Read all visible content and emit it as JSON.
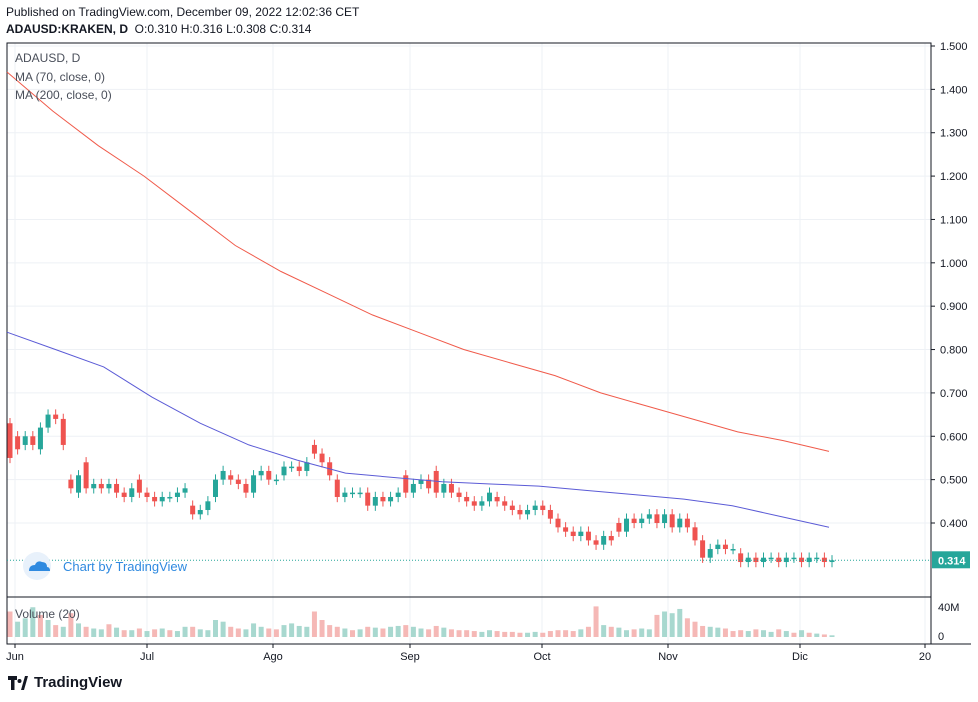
{
  "header": {
    "published": "Published on TradingView.com, December 09, 2022 12:02:36 CET",
    "symbol": "ADAUSD:KRAKEN, D",
    "ohlc": "O:0.310 H:0.316 L:0.308 C:0.314"
  },
  "legend": {
    "symbol": "ADAUSD, D",
    "ma70": "MA (70, close, 0)",
    "ma200": "MA (200, close, 0)",
    "volume": "Volume (20)"
  },
  "watermark": "Chart by TradingView",
  "footer_brand": "TradingView",
  "price_tag": "0.314",
  "colors": {
    "up": "#26a69a",
    "down": "#ef5350",
    "ma70": "#5b5bd6",
    "ma200": "#f05a4a",
    "grid": "#eef1f5",
    "vol_up": "#a8d8cf",
    "vol_down": "#f5b8b6",
    "tag": "#26a69a"
  },
  "chart_data": {
    "type": "candlestick",
    "symbol": "ADAUSD",
    "interval": "D",
    "x_ticks": [
      "Jun",
      "Jul",
      "Ago",
      "Sep",
      "Oct",
      "Nov",
      "Dic",
      "20"
    ],
    "y_ticks": [
      "1.500",
      "1.400",
      "1.300",
      "1.200",
      "1.100",
      "1.000",
      "0.900",
      "0.800",
      "0.700",
      "0.600",
      "0.500",
      "0.400"
    ],
    "ylim": [
      0.29,
      1.51
    ],
    "volume_ticks": [
      "40M",
      "0"
    ],
    "last_close": 0.314,
    "ma200": [
      1.44,
      1.35,
      1.27,
      1.2,
      1.12,
      1.04,
      0.98,
      0.93,
      0.88,
      0.84,
      0.8,
      0.77,
      0.74,
      0.7,
      0.67,
      0.64,
      0.61,
      0.59,
      0.565
    ],
    "ma70": [
      0.84,
      0.8,
      0.76,
      0.69,
      0.63,
      0.58,
      0.545,
      0.515,
      0.505,
      0.495,
      0.49,
      0.485,
      0.475,
      0.465,
      0.455,
      0.44,
      0.415,
      0.39
    ],
    "candles": [
      [
        0.63,
        0.55
      ],
      [
        0.6,
        0.57
      ],
      [
        0.58,
        0.6
      ],
      [
        0.6,
        0.58
      ],
      [
        0.57,
        0.62
      ],
      [
        0.62,
        0.65
      ],
      [
        0.65,
        0.64
      ],
      [
        0.64,
        0.58
      ],
      [
        0.5,
        0.48
      ],
      [
        0.47,
        0.51
      ],
      [
        0.54,
        0.48
      ],
      [
        0.48,
        0.49
      ],
      [
        0.49,
        0.48
      ],
      [
        0.48,
        0.49
      ],
      [
        0.49,
        0.47
      ],
      [
        0.47,
        0.46
      ],
      [
        0.46,
        0.48
      ],
      [
        0.5,
        0.47
      ],
      [
        0.47,
        0.46
      ],
      [
        0.46,
        0.45
      ],
      [
        0.45,
        0.46
      ],
      [
        0.46,
        0.46
      ],
      [
        0.46,
        0.47
      ],
      [
        0.47,
        0.48
      ],
      [
        0.44,
        0.42
      ],
      [
        0.42,
        0.43
      ],
      [
        0.43,
        0.45
      ],
      [
        0.46,
        0.5
      ],
      [
        0.5,
        0.52
      ],
      [
        0.51,
        0.5
      ],
      [
        0.5,
        0.49
      ],
      [
        0.49,
        0.47
      ],
      [
        0.47,
        0.51
      ],
      [
        0.51,
        0.52
      ],
      [
        0.52,
        0.5
      ],
      [
        0.5,
        0.5
      ],
      [
        0.51,
        0.53
      ],
      [
        0.53,
        0.53
      ],
      [
        0.53,
        0.52
      ],
      [
        0.52,
        0.54
      ],
      [
        0.58,
        0.56
      ],
      [
        0.56,
        0.54
      ],
      [
        0.54,
        0.51
      ],
      [
        0.5,
        0.46
      ],
      [
        0.46,
        0.47
      ],
      [
        0.47,
        0.47
      ],
      [
        0.47,
        0.47
      ],
      [
        0.47,
        0.44
      ],
      [
        0.44,
        0.46
      ],
      [
        0.46,
        0.45
      ],
      [
        0.45,
        0.46
      ],
      [
        0.46,
        0.47
      ],
      [
        0.51,
        0.47
      ],
      [
        0.47,
        0.49
      ],
      [
        0.49,
        0.5
      ],
      [
        0.5,
        0.48
      ],
      [
        0.52,
        0.47
      ],
      [
        0.47,
        0.49
      ],
      [
        0.49,
        0.47
      ],
      [
        0.47,
        0.46
      ],
      [
        0.46,
        0.45
      ],
      [
        0.45,
        0.44
      ],
      [
        0.44,
        0.45
      ],
      [
        0.45,
        0.47
      ],
      [
        0.46,
        0.45
      ],
      [
        0.45,
        0.44
      ],
      [
        0.44,
        0.43
      ],
      [
        0.43,
        0.42
      ],
      [
        0.42,
        0.43
      ],
      [
        0.43,
        0.44
      ],
      [
        0.44,
        0.43
      ],
      [
        0.43,
        0.41
      ],
      [
        0.41,
        0.39
      ],
      [
        0.39,
        0.38
      ],
      [
        0.38,
        0.37
      ],
      [
        0.37,
        0.38
      ],
      [
        0.38,
        0.36
      ],
      [
        0.36,
        0.35
      ],
      [
        0.35,
        0.37
      ],
      [
        0.37,
        0.36
      ],
      [
        0.4,
        0.38
      ],
      [
        0.38,
        0.41
      ],
      [
        0.41,
        0.4
      ],
      [
        0.4,
        0.41
      ],
      [
        0.41,
        0.42
      ],
      [
        0.42,
        0.4
      ],
      [
        0.4,
        0.42
      ],
      [
        0.42,
        0.39
      ],
      [
        0.39,
        0.41
      ],
      [
        0.41,
        0.39
      ],
      [
        0.39,
        0.36
      ],
      [
        0.36,
        0.32
      ],
      [
        0.32,
        0.34
      ],
      [
        0.34,
        0.35
      ],
      [
        0.35,
        0.34
      ],
      [
        0.34,
        0.34
      ],
      [
        0.33,
        0.31
      ],
      [
        0.31,
        0.32
      ],
      [
        0.32,
        0.31
      ],
      [
        0.31,
        0.32
      ],
      [
        0.32,
        0.32
      ],
      [
        0.32,
        0.31
      ],
      [
        0.31,
        0.32
      ],
      [
        0.32,
        0.32
      ],
      [
        0.32,
        0.31
      ],
      [
        0.31,
        0.32
      ],
      [
        0.32,
        0.32
      ],
      [
        0.32,
        0.31
      ],
      [
        0.31,
        0.314
      ]
    ],
    "volumes": [
      [
        30,
        0
      ],
      [
        18,
        1
      ],
      [
        22,
        1
      ],
      [
        35,
        1
      ],
      [
        26,
        0
      ],
      [
        20,
        1
      ],
      [
        14,
        0
      ],
      [
        12,
        1
      ],
      [
        28,
        0
      ],
      [
        16,
        1
      ],
      [
        12,
        0
      ],
      [
        10,
        1
      ],
      [
        9,
        1
      ],
      [
        15,
        0
      ],
      [
        11,
        1
      ],
      [
        8,
        0
      ],
      [
        8,
        1
      ],
      [
        10,
        0
      ],
      [
        7,
        1
      ],
      [
        9,
        0
      ],
      [
        10,
        1
      ],
      [
        8,
        0
      ],
      [
        7,
        1
      ],
      [
        12,
        1
      ],
      [
        12,
        0
      ],
      [
        9,
        1
      ],
      [
        8,
        1
      ],
      [
        20,
        1
      ],
      [
        18,
        1
      ],
      [
        12,
        0
      ],
      [
        10,
        0
      ],
      [
        9,
        1
      ],
      [
        16,
        1
      ],
      [
        12,
        1
      ],
      [
        10,
        0
      ],
      [
        9,
        0
      ],
      [
        14,
        1
      ],
      [
        16,
        1
      ],
      [
        13,
        1
      ],
      [
        12,
        1
      ],
      [
        30,
        0
      ],
      [
        20,
        0
      ],
      [
        14,
        0
      ],
      [
        12,
        0
      ],
      [
        10,
        1
      ],
      [
        8,
        0
      ],
      [
        9,
        1
      ],
      [
        12,
        0
      ],
      [
        11,
        1
      ],
      [
        10,
        0
      ],
      [
        12,
        1
      ],
      [
        13,
        1
      ],
      [
        14,
        0
      ],
      [
        12,
        1
      ],
      [
        10,
        1
      ],
      [
        9,
        0
      ],
      [
        13,
        0
      ],
      [
        11,
        1
      ],
      [
        9,
        0
      ],
      [
        8,
        0
      ],
      [
        8,
        0
      ],
      [
        7,
        0
      ],
      [
        6,
        1
      ],
      [
        8,
        1
      ],
      [
        7,
        0
      ],
      [
        6,
        0
      ],
      [
        6,
        0
      ],
      [
        5,
        0
      ],
      [
        5,
        1
      ],
      [
        6,
        1
      ],
      [
        5,
        0
      ],
      [
        7,
        0
      ],
      [
        8,
        0
      ],
      [
        8,
        0
      ],
      [
        7,
        0
      ],
      [
        9,
        1
      ],
      [
        12,
        0
      ],
      [
        36,
        0
      ],
      [
        14,
        1
      ],
      [
        12,
        0
      ],
      [
        11,
        1
      ],
      [
        8,
        1
      ],
      [
        9,
        0
      ],
      [
        10,
        1
      ],
      [
        9,
        1
      ],
      [
        26,
        0
      ],
      [
        30,
        1
      ],
      [
        28,
        1
      ],
      [
        33,
        1
      ],
      [
        22,
        0
      ],
      [
        18,
        0
      ],
      [
        13,
        0
      ],
      [
        12,
        1
      ],
      [
        11,
        1
      ],
      [
        10,
        0
      ],
      [
        7,
        0
      ],
      [
        8,
        0
      ],
      [
        7,
        1
      ],
      [
        9,
        0
      ],
      [
        8,
        1
      ],
      [
        6,
        1
      ],
      [
        9,
        0
      ],
      [
        7,
        1
      ],
      [
        5,
        0
      ],
      [
        8,
        1
      ],
      [
        5,
        0
      ],
      [
        4,
        1
      ],
      [
        3,
        0
      ],
      [
        2,
        1
      ]
    ]
  }
}
